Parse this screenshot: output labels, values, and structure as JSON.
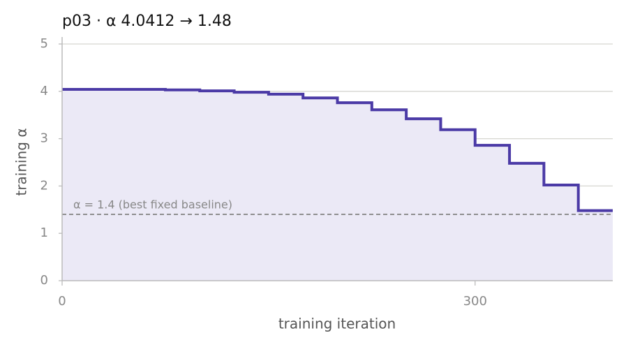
{
  "chart_data": {
    "type": "step",
    "title": "p03   ·   α 4.0412 → 1.48",
    "x_label": "training iteration",
    "y_label": "training α",
    "x": [
      0,
      75,
      100,
      125,
      150,
      175,
      200,
      225,
      250,
      275,
      300,
      325,
      350,
      375
    ],
    "series": [
      {
        "color": "#4b3aa6",
        "values": [
          4.0412,
          4.03,
          4.01,
          3.98,
          3.94,
          3.86,
          3.76,
          3.61,
          3.42,
          3.19,
          2.86,
          2.48,
          2.02,
          1.48
        ]
      }
    ],
    "fill_color": "#ebe9f6",
    "hline": {
      "value": 1.4,
      "label": "α = 1.4 (best fixed baseline)"
    },
    "xlim": [
      0,
      400
    ],
    "xticks": [
      0,
      300
    ],
    "ylim": [
      0,
      5
    ],
    "yticks": [
      0,
      1,
      2,
      3,
      4,
      5
    ],
    "grid": true
  }
}
